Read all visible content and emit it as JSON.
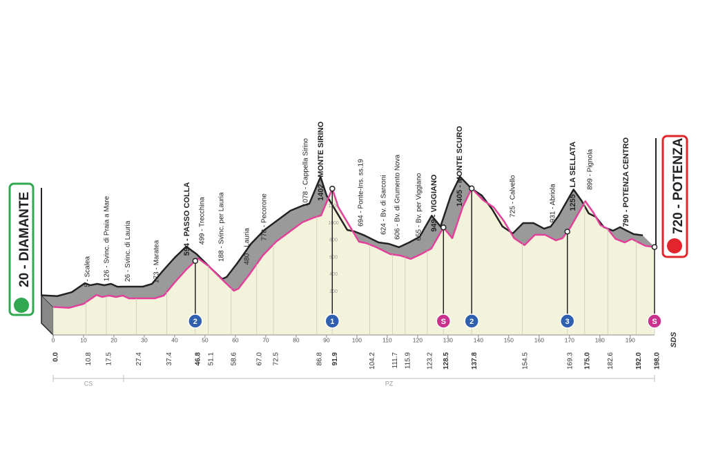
{
  "chart_data": {
    "type": "profile",
    "start": "20 - DIAMANTE",
    "finish": "720 - POTENZA",
    "brand": "SDS",
    "xlim": [
      0,
      198
    ],
    "ylim": [
      0,
      1400
    ],
    "xticks": [
      0,
      10,
      20,
      30,
      40,
      50,
      60,
      70,
      80,
      90,
      100,
      110,
      120,
      130,
      140,
      150,
      160,
      170,
      180,
      190
    ],
    "yticks": [
      200,
      400,
      600,
      800,
      1000,
      1200
    ],
    "grid": false,
    "line_color": "#e2409a",
    "ridge_color": "#9a9a9a",
    "face_color": "#f3f3dc",
    "profile": {
      "km": [
        0,
        5.2,
        10,
        14.3,
        16.1,
        18.4,
        20.7,
        22.9,
        25,
        28.4,
        33.4,
        36.4,
        39.8,
        43.9,
        47.7,
        51.1,
        55.7,
        59.5,
        61,
        64.5,
        69,
        73.4,
        78,
        82,
        85.9,
        88.2,
        91.9,
        93.9,
        97.3,
        100.7,
        103,
        106.4,
        111,
        114.3,
        117.7,
        121.1,
        124.5,
        128.5,
        131.4,
        134.8,
        137.8,
        141.6,
        145,
        148.4,
        151.8,
        155.2,
        158.6,
        162,
        165.5,
        167.7,
        170.2,
        175.2,
        177.9,
        180.2,
        182.5,
        185.2,
        188.2,
        190.5,
        192.7,
        195,
        198
      ],
      "altitude": [
        20,
        10,
        56,
        161,
        137,
        153,
        137,
        153,
        120,
        121,
        121,
        153,
        298,
        460,
        589,
        500,
        339,
        210,
        234,
        395,
        621,
        782,
        903,
        1008,
        1065,
        1089,
        1402,
        1185,
        984,
        782,
        766,
        718,
        637,
        621,
        581,
        637,
        702,
        949,
        823,
        1185,
        1405,
        1266,
        1185,
        1024,
        823,
        742,
        863,
        863,
        798,
        823,
        944,
        1255,
        1121,
        976,
        935,
        815,
        774,
        815,
        774,
        734,
        720
      ]
    },
    "waypoints": [
      {
        "km": 10.7,
        "label": "5 - Scalea",
        "bold": false
      },
      {
        "km": 17,
        "label": "126 - Svinc. di Praia a Mare",
        "bold": false
      },
      {
        "km": 23.9,
        "label": "26 - Svinc. di Lauria",
        "bold": false
      },
      {
        "km": 33.4,
        "label": "173 - Maratea",
        "bold": false
      },
      {
        "km": 43.4,
        "label": "594 - PASSO COLLA",
        "bold": true
      },
      {
        "km": 48.4,
        "label": "499 - Trecchina",
        "bold": false
      },
      {
        "km": 54.8,
        "label": "188 - Svinc. per Lauria",
        "bold": false
      },
      {
        "km": 63.2,
        "label": "480 - Lauria",
        "bold": false
      },
      {
        "km": 68.9,
        "label": "778 - Pecorone",
        "bold": false
      },
      {
        "km": 82.5,
        "label": "1078 - Cappella Sirino",
        "bold": false
      },
      {
        "km": 87.5,
        "label": "1402 - MONTE SIRINO",
        "bold": true
      },
      {
        "km": 100.7,
        "label": "694 - Ponte-Ins. ss.19",
        "bold": false
      },
      {
        "km": 108.2,
        "label": "624 - Bv. di Sarconi",
        "bold": false
      },
      {
        "km": 112.7,
        "label": "606 - Bv. di Grumento Nova",
        "bold": false
      },
      {
        "km": 119.8,
        "label": "655 - Bv. per Viggiano",
        "bold": false
      },
      {
        "km": 124.8,
        "label": "949 - VIGGIANO",
        "bold": true
      },
      {
        "km": 133.2,
        "label": "1405 - MONTE SCURO",
        "bold": true
      },
      {
        "km": 150.7,
        "label": "725 - Calvello",
        "bold": false
      },
      {
        "km": 163.9,
        "label": "931 - Abriola",
        "bold": false
      },
      {
        "km": 170.5,
        "label": "1255 - LA SELLATA",
        "bold": true
      },
      {
        "km": 176.1,
        "label": "899 - Pignola",
        "bold": false
      },
      {
        "km": 188,
        "label": "790 - POTENZA CENTRO",
        "bold": true
      }
    ],
    "km_marks": [
      {
        "value": 0,
        "label": "0.0",
        "bold": true
      },
      {
        "value": 10.8,
        "label": "10.8",
        "bold": false
      },
      {
        "value": 17.5,
        "label": "17.5",
        "bold": false
      },
      {
        "value": 27.4,
        "label": "27.4",
        "bold": false
      },
      {
        "value": 37.4,
        "label": "37.4",
        "bold": false
      },
      {
        "value": 46.8,
        "label": "46.8",
        "bold": true
      },
      {
        "value": 51.1,
        "label": "51.1",
        "bold": false
      },
      {
        "value": 58.6,
        "label": "58.6",
        "bold": false
      },
      {
        "value": 67,
        "label": "67.0",
        "bold": false
      },
      {
        "value": 72.5,
        "label": "72.5",
        "bold": false
      },
      {
        "value": 86.8,
        "label": "86.8",
        "bold": false
      },
      {
        "value": 91.9,
        "label": "91.9",
        "bold": true
      },
      {
        "value": 104.2,
        "label": "104.2",
        "bold": false
      },
      {
        "value": 111.7,
        "label": "111.7",
        "bold": false
      },
      {
        "value": 115.9,
        "label": "115.9",
        "bold": false
      },
      {
        "value": 123.2,
        "label": "123.2",
        "bold": false
      },
      {
        "value": 128.5,
        "label": "128.5",
        "bold": true
      },
      {
        "value": 137.8,
        "label": "137.8",
        "bold": true
      },
      {
        "value": 154.5,
        "label": "154.5",
        "bold": false
      },
      {
        "value": 169.3,
        "label": "169.3",
        "bold": false
      },
      {
        "value": 175,
        "label": "175.0",
        "bold": true
      },
      {
        "value": 182.6,
        "label": "182.6",
        "bold": false
      },
      {
        "value": 192,
        "label": "192.0",
        "bold": true
      },
      {
        "value": 198,
        "label": "198.0",
        "bold": true
      }
    ],
    "markers": [
      {
        "km": 46.8,
        "label": "2",
        "color": "#2f5fae"
      },
      {
        "km": 91.9,
        "label": "1",
        "color": "#2f5fae"
      },
      {
        "km": 128.5,
        "label": "S",
        "color": "#c8328c"
      },
      {
        "km": 137.8,
        "label": "2",
        "color": "#2f5fae"
      },
      {
        "km": 169.3,
        "label": "3",
        "color": "#2f5fae"
      },
      {
        "km": 198,
        "label": "S",
        "color": "#c8328c"
      }
    ],
    "provinces": {
      "labels": [
        "CS",
        "PZ"
      ],
      "border_km": 23.2
    }
  }
}
